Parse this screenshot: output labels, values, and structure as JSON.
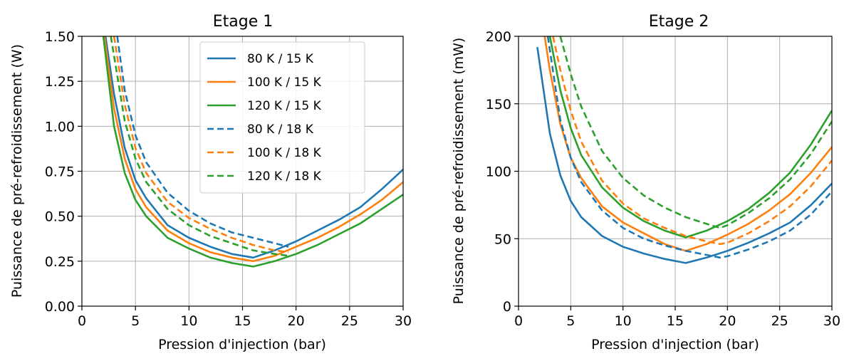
{
  "chart_data": [
    {
      "type": "line",
      "title": "Etage 1",
      "xlabel": "Pression d'injection (bar)",
      "ylabel": "Puissance de pré-refroidissement (W)",
      "xlim": [
        0,
        30
      ],
      "ylim": [
        0,
        1.5
      ],
      "xticks": [
        "0",
        "5",
        "10",
        "15",
        "20",
        "25",
        "30"
      ],
      "yticks": [
        "0.00",
        "0.25",
        "0.50",
        "0.75",
        "1.00",
        "1.25",
        "1.50"
      ],
      "grid": true,
      "legend": "top-right",
      "series": [
        {
          "name": "80 K / 15 K",
          "color": "#1f77b4",
          "dash": "solid",
          "x": [
            2.2,
            3,
            4,
            5,
            6,
            8,
            10,
            12,
            14,
            16,
            18,
            20,
            22,
            24,
            26,
            28,
            30
          ],
          "y": [
            1.5,
            1.18,
            0.88,
            0.7,
            0.6,
            0.45,
            0.38,
            0.33,
            0.29,
            0.27,
            0.31,
            0.36,
            0.42,
            0.48,
            0.55,
            0.65,
            0.76
          ]
        },
        {
          "name": "100 K / 15 K",
          "color": "#ff7f0e",
          "dash": "solid",
          "x": [
            2.1,
            3,
            4,
            5,
            6,
            8,
            10,
            12,
            14,
            16,
            18,
            20,
            22,
            24,
            26,
            28,
            30
          ],
          "y": [
            1.5,
            1.1,
            0.82,
            0.65,
            0.55,
            0.42,
            0.35,
            0.3,
            0.27,
            0.25,
            0.28,
            0.33,
            0.38,
            0.44,
            0.51,
            0.59,
            0.69
          ]
        },
        {
          "name": "120 K / 15 K",
          "color": "#2ca02c",
          "dash": "solid",
          "x": [
            2.0,
            3,
            4,
            5,
            6,
            8,
            10,
            12,
            14,
            16,
            18,
            20,
            22,
            24,
            26,
            28,
            30
          ],
          "y": [
            1.5,
            1.0,
            0.74,
            0.59,
            0.5,
            0.38,
            0.32,
            0.27,
            0.24,
            0.22,
            0.25,
            0.29,
            0.34,
            0.4,
            0.46,
            0.54,
            0.62
          ]
        },
        {
          "name": "80 K / 18 K",
          "color": "#1f77b4",
          "dash": "dashed",
          "x": [
            3.3,
            4,
            5,
            6,
            8,
            10,
            12,
            14,
            16,
            18,
            19.3
          ],
          "y": [
            1.5,
            1.2,
            0.95,
            0.8,
            0.63,
            0.53,
            0.46,
            0.41,
            0.38,
            0.35,
            0.33
          ]
        },
        {
          "name": "100 K / 18 K",
          "color": "#ff7f0e",
          "dash": "dashed",
          "x": [
            3.0,
            4,
            5,
            6,
            8,
            10,
            12,
            14,
            16,
            18,
            19.3
          ],
          "y": [
            1.5,
            1.12,
            0.88,
            0.74,
            0.58,
            0.49,
            0.43,
            0.38,
            0.34,
            0.31,
            0.3
          ]
        },
        {
          "name": "120 K / 18 K",
          "color": "#2ca02c",
          "dash": "dashed",
          "x": [
            2.7,
            4,
            5,
            6,
            8,
            10,
            12,
            14,
            16,
            18,
            19.3
          ],
          "y": [
            1.5,
            1.03,
            0.82,
            0.69,
            0.54,
            0.45,
            0.39,
            0.35,
            0.31,
            0.29,
            0.28
          ]
        }
      ]
    },
    {
      "type": "line",
      "title": "Etage 2",
      "xlabel": "Pression d'injection (bar)",
      "ylabel": "Puissance de pré-refroidissement (mW)",
      "xlim": [
        0,
        30
      ],
      "ylim": [
        0,
        200
      ],
      "xticks": [
        "0",
        "5",
        "10",
        "15",
        "20",
        "25",
        "30"
      ],
      "yticks": [
        "0",
        "50",
        "100",
        "150",
        "200"
      ],
      "grid": true,
      "series": [
        {
          "name": "80 K / 15 K",
          "color": "#1f77b4",
          "dash": "solid",
          "x": [
            1.8,
            3,
            4,
            5,
            6,
            8,
            10,
            12,
            14,
            16,
            18,
            20,
            22,
            24,
            26,
            28,
            30
          ],
          "y": [
            192,
            128,
            97,
            78,
            66,
            52,
            44,
            39,
            35,
            32,
            36,
            41,
            47,
            54,
            62,
            75,
            91
          ]
        },
        {
          "name": "100 K / 15 K",
          "color": "#ff7f0e",
          "dash": "solid",
          "x": [
            2.5,
            3,
            4,
            5,
            6,
            8,
            10,
            12,
            14,
            16,
            18,
            20,
            22,
            24,
            26,
            28,
            30
          ],
          "y": [
            200,
            175,
            135,
            110,
            95,
            74,
            62,
            54,
            46,
            41,
            46,
            53,
            61,
            71,
            83,
            99,
            118
          ]
        },
        {
          "name": "120 K / 15 K",
          "color": "#2ca02c",
          "dash": "solid",
          "x": [
            3.0,
            4,
            5,
            6,
            8,
            10,
            12,
            14,
            16,
            18,
            20,
            22,
            24,
            26,
            28,
            30
          ],
          "y": [
            200,
            160,
            132,
            112,
            88,
            73,
            63,
            56,
            51,
            56,
            63,
            72,
            84,
            99,
            120,
            145
          ]
        },
        {
          "name": "80 K / 18 K",
          "color": "#1f77b4",
          "dash": "dashed",
          "x": [
            2.8,
            4,
            5,
            6,
            8,
            10,
            12,
            14,
            16,
            18,
            19.3,
            20,
            22,
            24,
            26,
            28,
            30
          ],
          "y": [
            200,
            138,
            110,
            92,
            71,
            58,
            50,
            45,
            41,
            38,
            36,
            37,
            42,
            48,
            56,
            68,
            85
          ]
        },
        {
          "name": "100 K / 18 K",
          "color": "#ff7f0e",
          "dash": "dashed",
          "x": [
            3.3,
            4,
            5,
            6,
            8,
            10,
            12,
            14,
            16,
            18,
            19.3,
            20,
            22,
            24,
            26,
            28,
            30
          ],
          "y": [
            200,
            175,
            145,
            122,
            93,
            76,
            65,
            58,
            52,
            48,
            46,
            47,
            54,
            63,
            74,
            89,
            108
          ]
        },
        {
          "name": "120 K / 18 K",
          "color": "#2ca02c",
          "dash": "dashed",
          "x": [
            4.0,
            5,
            6,
            8,
            10,
            12,
            14,
            16,
            18,
            19.3,
            20,
            22,
            24,
            26,
            28,
            30
          ],
          "y": [
            200,
            172,
            148,
            115,
            95,
            82,
            73,
            66,
            61,
            58,
            60,
            69,
            80,
            94,
            113,
            137
          ]
        }
      ]
    }
  ]
}
